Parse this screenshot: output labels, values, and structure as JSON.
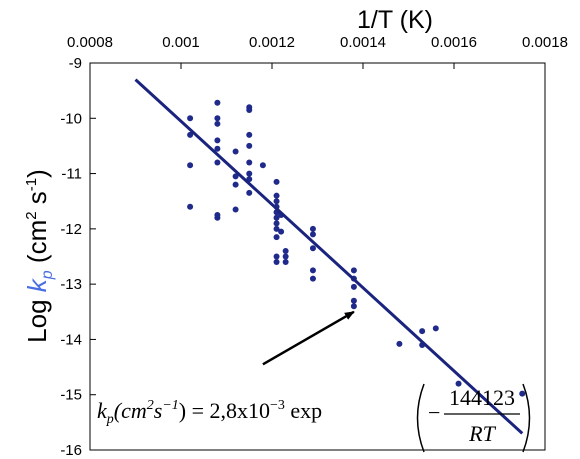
{
  "chart_data": {
    "type": "scatter",
    "title": "",
    "xlabel": "1/T (K)",
    "ylabel": {
      "prefix": "Log ",
      "symbol": "k",
      "subscript": "p",
      "units": " (cm",
      "units_sup": "2",
      "units_mid": " s",
      "units_sup2": "-1",
      "units_end": ")"
    },
    "xlim": [
      0.0008,
      0.0018
    ],
    "ylim": [
      -16,
      -9
    ],
    "xticks": [
      "0.0008",
      "0.001",
      "0.0012",
      "0.0014",
      "0.0016",
      "0.0018"
    ],
    "yticks": [
      "-9",
      "-10",
      "-11",
      "-12",
      "-13",
      "-14",
      "-15",
      "-16"
    ],
    "xaxis_position": "top",
    "grid": false,
    "legend": "none",
    "colors": {
      "points": "#1f2a8a",
      "fit_line": "#1a237e",
      "ylabel_symbol": "#4a6fe3"
    },
    "series": [
      {
        "points": [
          [
            0.00102,
            -10.0
          ],
          [
            0.00102,
            -10.3
          ],
          [
            0.00102,
            -10.85
          ],
          [
            0.00102,
            -11.6
          ],
          [
            0.00108,
            -9.72
          ],
          [
            0.00108,
            -10.0
          ],
          [
            0.00108,
            -10.1
          ],
          [
            0.00108,
            -10.4
          ],
          [
            0.00108,
            -10.55
          ],
          [
            0.00108,
            -10.8
          ],
          [
            0.00108,
            -11.8
          ],
          [
            0.00108,
            -11.75
          ],
          [
            0.00112,
            -10.6
          ],
          [
            0.00112,
            -11.05
          ],
          [
            0.00112,
            -11.2
          ],
          [
            0.00112,
            -11.65
          ],
          [
            0.00115,
            -9.8
          ],
          [
            0.00115,
            -9.85
          ],
          [
            0.00115,
            -10.3
          ],
          [
            0.00115,
            -10.5
          ],
          [
            0.00115,
            -10.8
          ],
          [
            0.00115,
            -11.0
          ],
          [
            0.00115,
            -11.1
          ],
          [
            0.00115,
            -11.35
          ],
          [
            0.00118,
            -10.85
          ],
          [
            0.00121,
            -11.15
          ],
          [
            0.00121,
            -11.4
          ],
          [
            0.00121,
            -11.5
          ],
          [
            0.00121,
            -11.6
          ],
          [
            0.00121,
            -11.7
          ],
          [
            0.00121,
            -11.8
          ],
          [
            0.00121,
            -11.9
          ],
          [
            0.00121,
            -12.0
          ],
          [
            0.00121,
            -12.15
          ],
          [
            0.00121,
            -12.5
          ],
          [
            0.00121,
            -12.6
          ],
          [
            0.00122,
            -11.75
          ],
          [
            0.00122,
            -12.05
          ],
          [
            0.00123,
            -12.4
          ],
          [
            0.00123,
            -12.5
          ],
          [
            0.00123,
            -12.6
          ],
          [
            0.00129,
            -12.0
          ],
          [
            0.00129,
            -12.1
          ],
          [
            0.00129,
            -12.35
          ],
          [
            0.00129,
            -12.75
          ],
          [
            0.00129,
            -12.9
          ],
          [
            0.00138,
            -12.75
          ],
          [
            0.00138,
            -12.9
          ],
          [
            0.00138,
            -13.05
          ],
          [
            0.00138,
            -13.3
          ],
          [
            0.00138,
            -13.4
          ],
          [
            0.00148,
            -14.08
          ],
          [
            0.00153,
            -13.85
          ],
          [
            0.00153,
            -14.1
          ],
          [
            0.00156,
            -13.8
          ],
          [
            0.00161,
            -14.8
          ],
          [
            0.00175,
            -14.98
          ]
        ]
      }
    ],
    "fit_line": {
      "x": [
        0.0009,
        0.00175
      ],
      "y": [
        -9.3,
        -15.7
      ]
    },
    "annotation": {
      "arrow": {
        "from": [
          0.00118,
          -14.45
        ],
        "to": [
          0.00138,
          -13.5
        ]
      },
      "equation": {
        "lhs_k": "k",
        "lhs_sub": "p",
        "lhs_units": "(cm",
        "lhs_sup": "2",
        "lhs_s": "s",
        "lhs_sup2": "−1",
        "rhs": ") = 2,8x10",
        "rhs_sup": "−3",
        "rhs_exp": " exp",
        "minus": "−",
        "numerator": "144123",
        "denominator": "RT"
      }
    }
  }
}
